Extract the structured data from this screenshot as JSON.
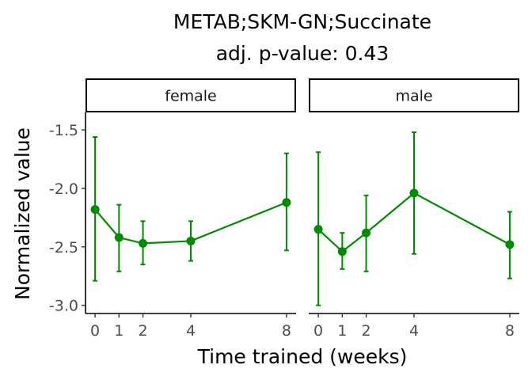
{
  "chart_data": {
    "type": "line",
    "title": "METAB;SKM-GN;Succinate",
    "subtitle": "adj. p-value: 0.43",
    "xlabel": "Time trained (weeks)",
    "ylabel": "Normalized value",
    "x_ticks": [
      0,
      1,
      2,
      4,
      8
    ],
    "y_ticks": [
      -3.0,
      -2.5,
      -2.0,
      -1.5
    ],
    "y_tick_labels": [
      "-3.0",
      "-2.5",
      "-2.0",
      "-1.5"
    ],
    "xlim": [
      -0.4,
      8.4
    ],
    "ylim": [
      -3.07,
      -1.35
    ],
    "grid": false,
    "legend": "none",
    "color": "#008b00",
    "panels": [
      {
        "label": "female",
        "points": [
          {
            "x": 0,
            "y": -2.18,
            "ymin": -2.79,
            "ymax": -1.56
          },
          {
            "x": 1,
            "y": -2.42,
            "ymin": -2.71,
            "ymax": -2.14
          },
          {
            "x": 2,
            "y": -2.47,
            "ymin": -2.65,
            "ymax": -2.28
          },
          {
            "x": 4,
            "y": -2.45,
            "ymin": -2.62,
            "ymax": -2.28
          },
          {
            "x": 8,
            "y": -2.12,
            "ymin": -2.53,
            "ymax": -1.7
          }
        ]
      },
      {
        "label": "male",
        "points": [
          {
            "x": 0,
            "y": -2.35,
            "ymin": -3.0,
            "ymax": -1.69
          },
          {
            "x": 1,
            "y": -2.54,
            "ymin": -2.69,
            "ymax": -2.38
          },
          {
            "x": 2,
            "y": -2.38,
            "ymin": -2.71,
            "ymax": -2.06
          },
          {
            "x": 4,
            "y": -2.04,
            "ymin": -2.56,
            "ymax": -1.52
          },
          {
            "x": 8,
            "y": -2.48,
            "ymin": -2.77,
            "ymax": -2.2
          }
        ]
      }
    ]
  }
}
